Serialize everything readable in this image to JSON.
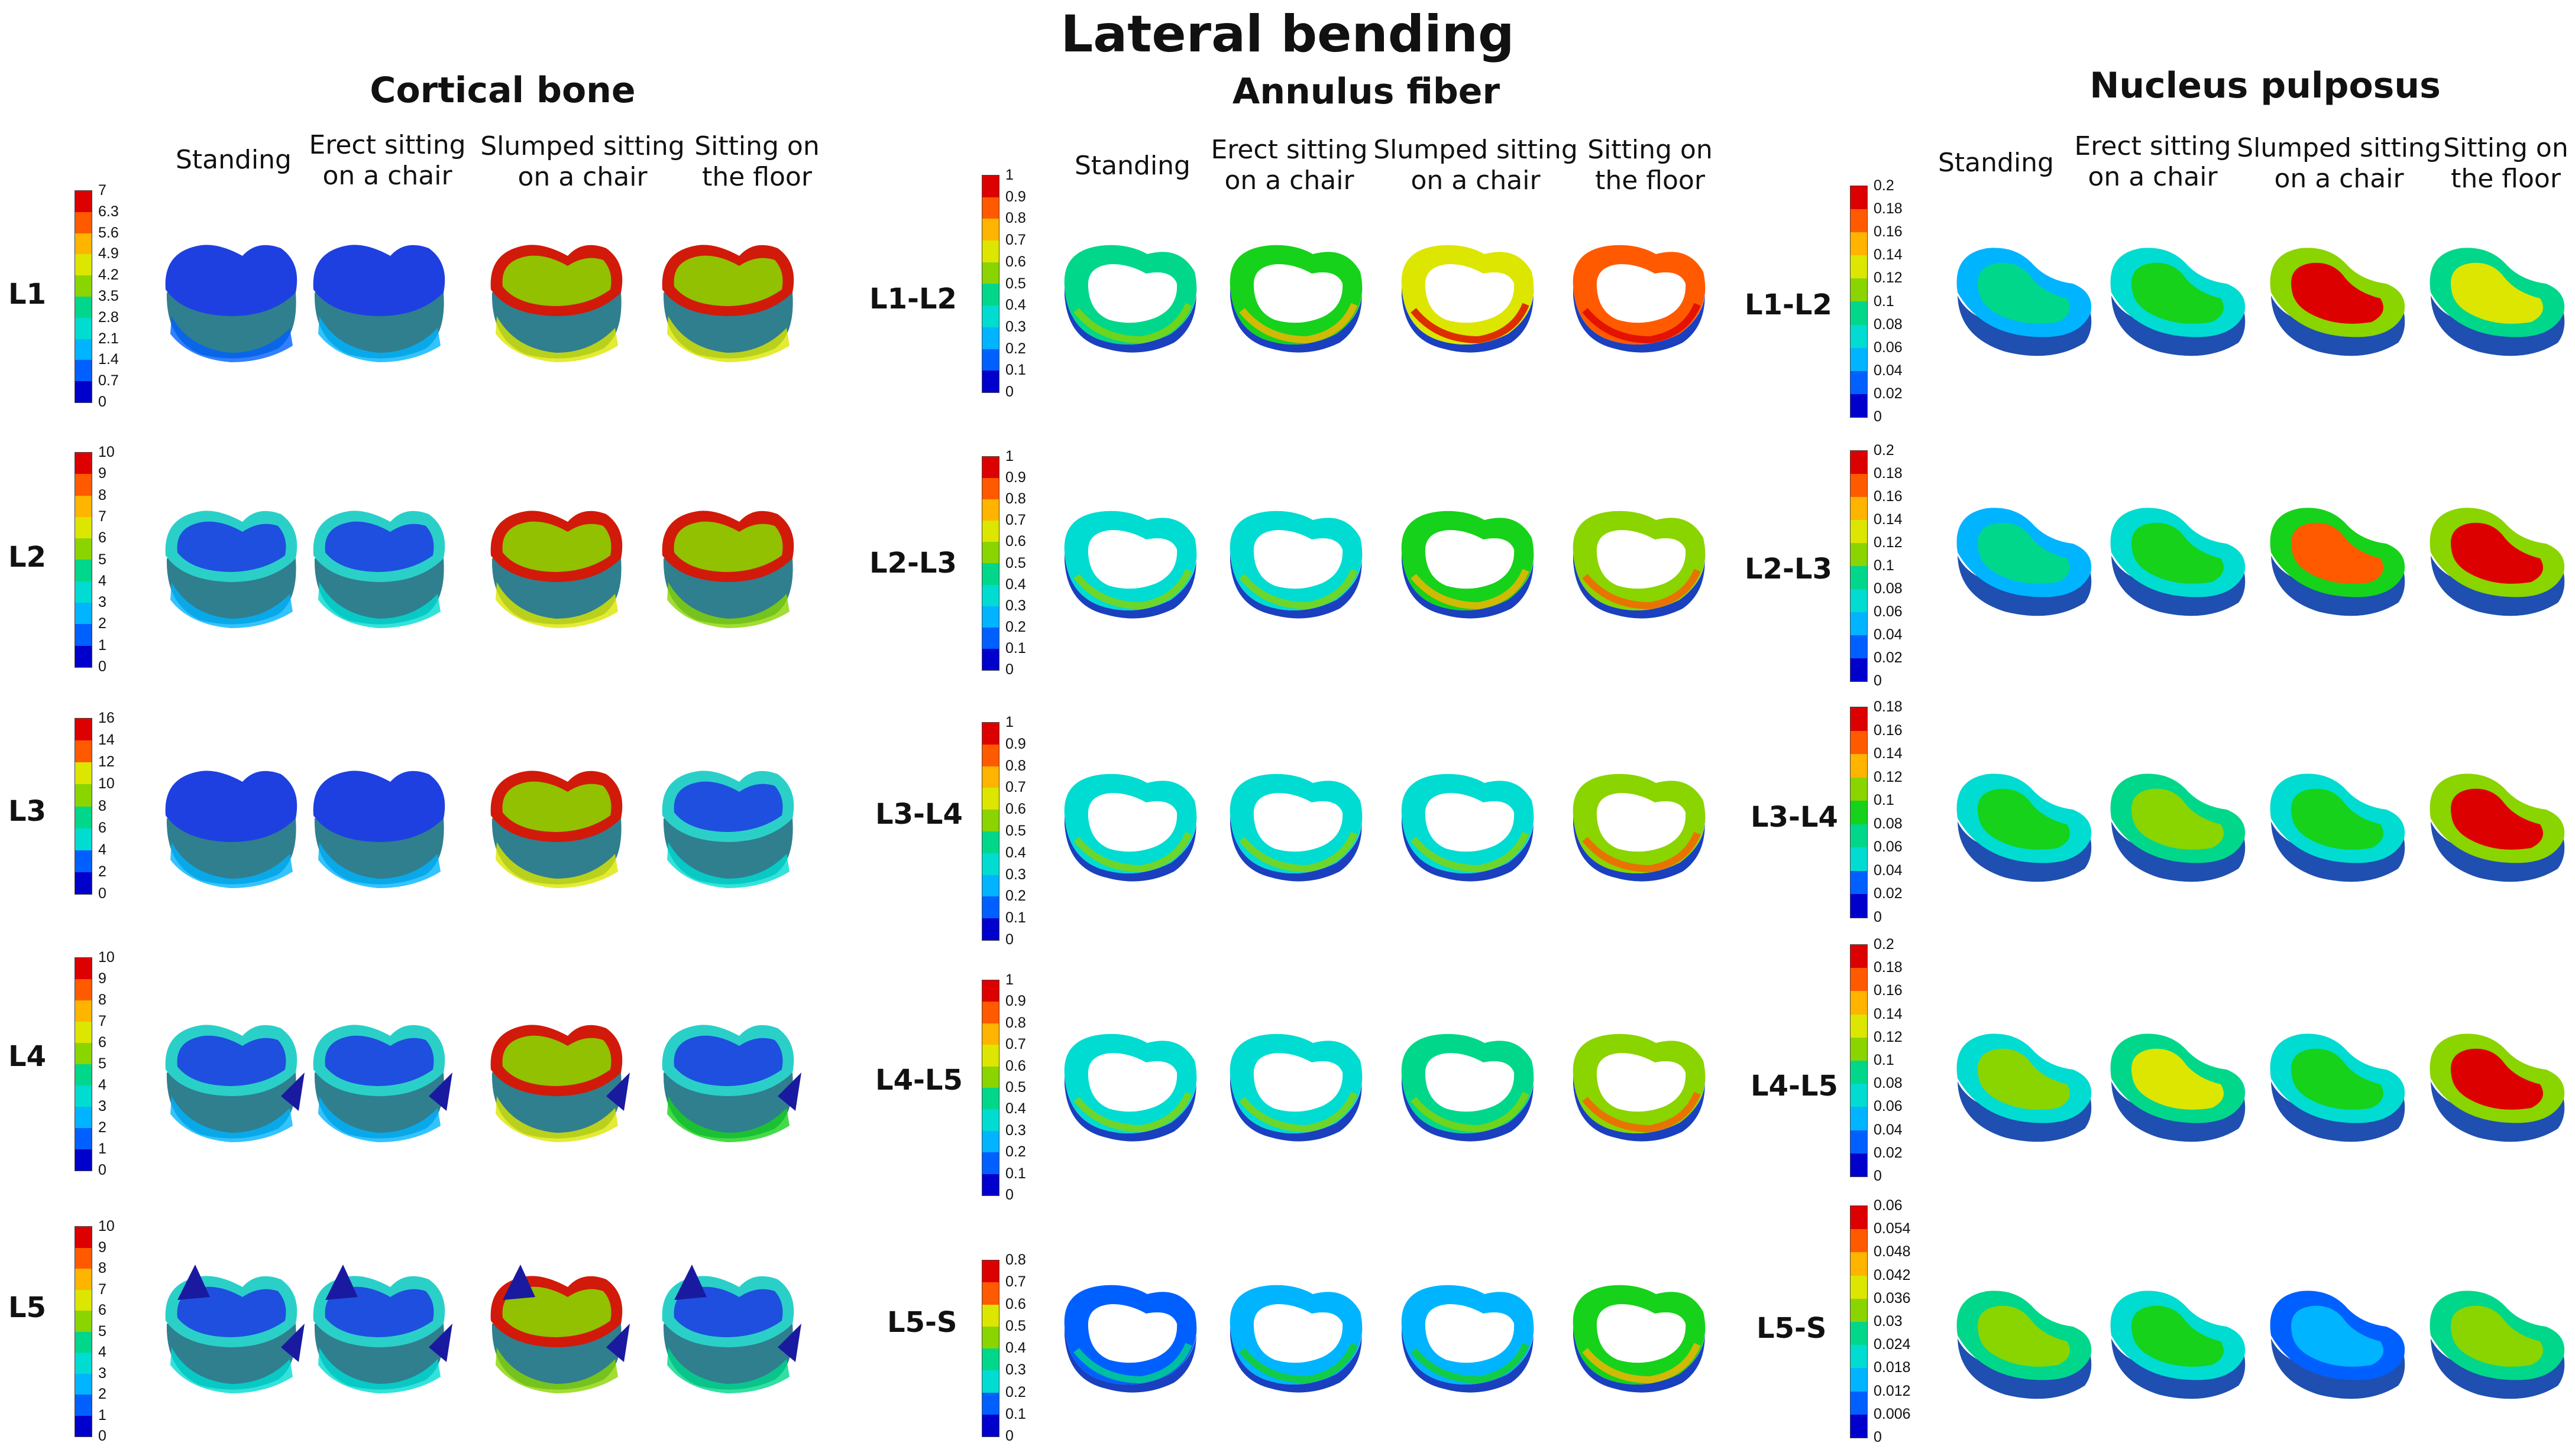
{
  "title": "Lateral bending",
  "conditions": [
    "Standing",
    "Erect sitting\non a chair",
    "Slumped sitting\non  a chair",
    "Sitting on\nthe floor"
  ],
  "colors": {
    "scale": [
      "#0000cc",
      "#0060ff",
      "#00b4ff",
      "#00dcd2",
      "#00d78a",
      "#16d21a",
      "#8ad400",
      "#dce600",
      "#ffb400",
      "#ff5a00",
      "#dd0000"
    ],
    "cortical_base": "#2f7f8f",
    "low": "#1e40e0",
    "mid": "#2ad0c8",
    "high": "#d11a0a"
  },
  "sections": [
    {
      "key": "cortical",
      "title": "Cortical bone",
      "rows": [
        {
          "label": "L1",
          "ticks": [
            "7",
            "6.3",
            "5.6",
            "4.9",
            "4.2",
            "3.5",
            "2.8",
            "2.1",
            "1.4",
            "0.7",
            "0"
          ]
        },
        {
          "label": "L2",
          "ticks": [
            "10",
            "9",
            "8",
            "7",
            "6",
            "5",
            "4",
            "3",
            "2",
            "1",
            "0"
          ]
        },
        {
          "label": "L3",
          "ticks": [
            "16",
            "14",
            "12",
            "10",
            "8",
            "6",
            "4",
            "2",
            "0"
          ]
        },
        {
          "label": "L4",
          "ticks": [
            "10",
            "9",
            "8",
            "7",
            "6",
            "5",
            "4",
            "3",
            "2",
            "1",
            "0"
          ]
        },
        {
          "label": "L5",
          "ticks": [
            "10",
            "9",
            "8",
            "7",
            "6",
            "5",
            "4",
            "3",
            "2",
            "1",
            "0"
          ]
        }
      ]
    },
    {
      "key": "annulus",
      "title": "Annulus fiber",
      "rows": [
        {
          "label": "L1-L2",
          "ticks": [
            "1",
            "0.9",
            "0.8",
            "0.7",
            "0.6",
            "0.5",
            "0.4",
            "0.3",
            "0.2",
            "0.1",
            "0"
          ]
        },
        {
          "label": "L2-L3",
          "ticks": [
            "1",
            "0.9",
            "0.8",
            "0.7",
            "0.6",
            "0.5",
            "0.4",
            "0.3",
            "0.2",
            "0.1",
            "0"
          ]
        },
        {
          "label": "L3-L4",
          "ticks": [
            "1",
            "0.9",
            "0.8",
            "0.7",
            "0.6",
            "0.5",
            "0.4",
            "0.3",
            "0.2",
            "0.1",
            "0"
          ]
        },
        {
          "label": "L4-L5",
          "ticks": [
            "1",
            "0.9",
            "0.8",
            "0.7",
            "0.6",
            "0.5",
            "0.4",
            "0.3",
            "0.2",
            "0.1",
            "0"
          ]
        },
        {
          "label": "L5-S",
          "ticks": [
            "0.8",
            "0.7",
            "0.6",
            "0.5",
            "0.4",
            "0.3",
            "0.2",
            "0.1",
            "0"
          ]
        }
      ]
    },
    {
      "key": "nucleus",
      "title": "Nucleus pulposus",
      "rows": [
        {
          "label": "L1-L2",
          "ticks": [
            "0.2",
            "0.18",
            "0.16",
            "0.14",
            "0.12",
            "0.1",
            "0.08",
            "0.06",
            "0.04",
            "0.02",
            "0"
          ]
        },
        {
          "label": "L2-L3",
          "ticks": [
            "0.2",
            "0.18",
            "0.16",
            "0.14",
            "0.12",
            "0.1",
            "0.08",
            "0.06",
            "0.04",
            "0.02",
            "0"
          ]
        },
        {
          "label": "L3-L4",
          "ticks": [
            "0.18",
            "0.16",
            "0.14",
            "0.12",
            "0.1",
            "0.08",
            "0.06",
            "0.04",
            "0.02",
            "0"
          ]
        },
        {
          "label": "L4-L5",
          "ticks": [
            "0.2",
            "0.18",
            "0.16",
            "0.14",
            "0.12",
            "0.1",
            "0.08",
            "0.06",
            "0.04",
            "0.02",
            "0"
          ]
        },
        {
          "label": "L5-S",
          "ticks": [
            "0.06",
            "0.054",
            "0.048",
            "0.042",
            "0.036",
            "0.03",
            "0.024",
            "0.018",
            "0.012",
            "0.006",
            "0"
          ]
        }
      ]
    }
  ]
}
